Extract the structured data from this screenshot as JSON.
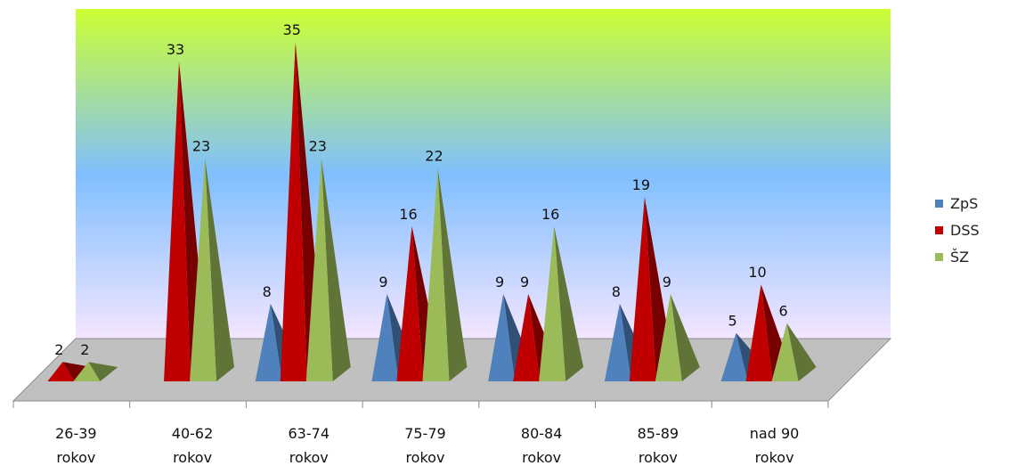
{
  "chart_data": {
    "type": "bar",
    "style": "3d-pyramid",
    "categories": [
      "26-39 rokov",
      "40-62 rokov",
      "63-74 rokov",
      "75-79 rokov",
      "80-84 rokov",
      "85-89 rokov",
      "nad 90 rokov"
    ],
    "category_lines": [
      [
        "26-39",
        "rokov"
      ],
      [
        "40-62",
        "rokov"
      ],
      [
        "63-74",
        "rokov"
      ],
      [
        "75-79",
        "rokov"
      ],
      [
        "80-84",
        "rokov"
      ],
      [
        "85-89",
        "rokov"
      ],
      [
        "nad 90",
        "rokov"
      ]
    ],
    "series": [
      {
        "name": "ZpS",
        "color": "#4F81BD",
        "values": [
          null,
          null,
          8,
          9,
          9,
          8,
          5
        ]
      },
      {
        "name": "DSS",
        "color": "#C00000",
        "values": [
          2,
          33,
          35,
          16,
          9,
          19,
          10
        ]
      },
      {
        "name": "ŠZ",
        "color": "#9BBB59",
        "values": [
          2,
          23,
          23,
          22,
          16,
          9,
          6
        ]
      }
    ],
    "title": "",
    "xlabel": "",
    "ylabel": "",
    "ylim": [
      0,
      35
    ],
    "grid": false,
    "legend": "right",
    "background_gradient": [
      "#CCFF33",
      "#80BFFF",
      "#F5E6FF"
    ]
  }
}
